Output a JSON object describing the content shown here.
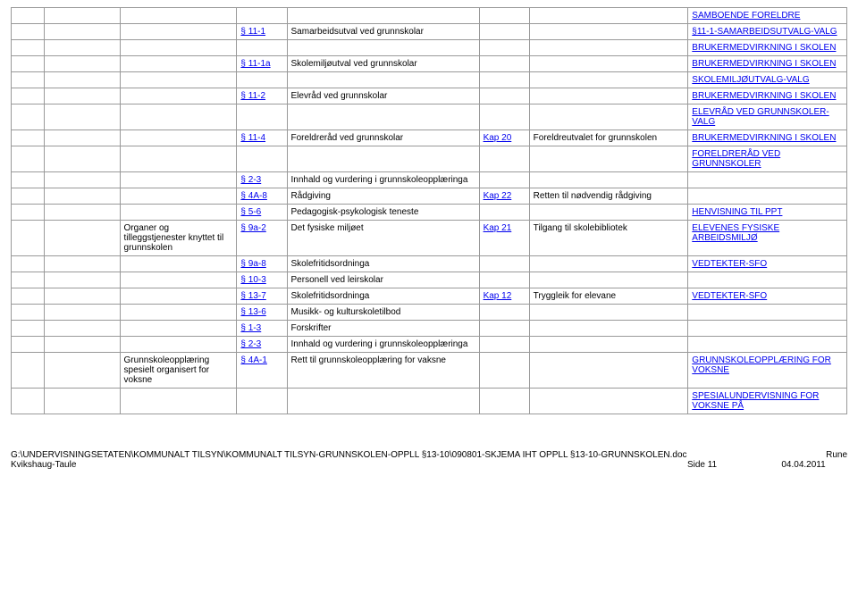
{
  "table": {
    "rows": [
      {
        "c8": {
          "text": "SAMBOENDE FORELDRE",
          "link": true
        }
      },
      {
        "c4": {
          "text": "§ 11-1",
          "link": true
        },
        "c5": {
          "text": "Samarbeidsutval ved grunnskolar"
        },
        "c8": {
          "text": "§11-1-SAMARBEIDSUTVALG-VALG",
          "link": true
        }
      },
      {
        "c8": {
          "text": "BRUKERMEDVIRKNING I SKOLEN",
          "link": true
        }
      },
      {
        "c4": {
          "text": "§ 11-1a",
          "link": true
        },
        "c5": {
          "text": "Skolemiljøutval ved grunnskolar"
        },
        "c8": {
          "text": "BRUKERMEDVIRKNING I SKOLEN",
          "link": true
        }
      },
      {
        "c8": {
          "text": "SKOLEMILJØUTVALG-VALG",
          "link": true
        }
      },
      {
        "c4": {
          "text": "§ 11-2",
          "link": true
        },
        "c5": {
          "text": "Elevråd ved grunnskolar"
        },
        "c8": {
          "text": "BRUKERMEDVIRKNING I SKOLEN",
          "link": true
        }
      },
      {
        "c8": {
          "text": "ELEVRÅD VED GRUNNSKOLER-VALG",
          "link": true
        }
      },
      {
        "c4": {
          "text": "§ 11-4",
          "link": true
        },
        "c5": {
          "text": "Foreldreråd ved grunnskolar"
        },
        "c6": {
          "text": "Kap 20",
          "link": true
        },
        "c7": {
          "text": "Foreldreutvalet for grunnskolen"
        },
        "c8": {
          "text": "BRUKERMEDVIRKNING I SKOLEN",
          "link": true
        }
      },
      {
        "c8": {
          "text": "FORELDRERÅD VED GRUNNSKOLER",
          "link": true
        }
      },
      {
        "c4": {
          "text": "§ 2-3",
          "link": true
        },
        "c5": {
          "text": "Innhald og vurdering i grunnskoleopplæringa"
        }
      },
      {
        "c4": {
          "text": "§ 4A-8",
          "link": true
        },
        "c5": {
          "text": "Rådgiving"
        },
        "c6": {
          "text": "Kap 22",
          "link": true
        },
        "c7": {
          "text": "Retten til nødvendig rådgiving"
        }
      },
      {
        "c4": {
          "text": "§ 5-6",
          "link": true
        },
        "c5": {
          "text": "Pedagogisk-psykologisk teneste"
        },
        "c8": {
          "text": " HENVISNING TIL PPT",
          "link": true
        }
      },
      {
        "c3": {
          "text": "Organer og tilleggstjenester knyttet til grunnskolen"
        },
        "c4": {
          "text": "§ 9a-2",
          "link": true
        },
        "c5": {
          "text": "Det fysiske miljøet"
        },
        "c6": {
          "text": "Kap 21",
          "link": true
        },
        "c7": {
          "text": "Tilgang til skolebibliotek"
        },
        "c8": {
          "text": "ELEVENES FYSISKE ARBEIDSMILJØ",
          "link": true
        }
      },
      {
        "c4": {
          "text": "§ 9a-8",
          "link": true
        },
        "c5": {
          "text": "Skolefritidsordninga"
        },
        "c8": {
          "text": " VEDTEKTER-SFO",
          "link": true
        }
      },
      {
        "c4": {
          "text": "§ 10-3",
          "link": true
        },
        "c5": {
          "text": "Personell ved leirskolar"
        }
      },
      {
        "c4": {
          "text": "§ 13-7",
          "link": true
        },
        "c5": {
          "text": "Skolefritidsordninga"
        },
        "c6": {
          "text": "Kap 12",
          "link": true
        },
        "c7": {
          "text": "Tryggleik for elevane"
        },
        "c8": {
          "text": " VEDTEKTER-SFO",
          "link": true
        }
      },
      {
        "c4": {
          "text": "§ 13-6",
          "link": true
        },
        "c5": {
          "text": "Musikk- og kulturskoletilbod"
        }
      },
      {
        "c4": {
          "text": "§ 1-3",
          "link": true
        },
        "c5": {
          "text": "Forskrifter"
        }
      },
      {
        "c4": {
          "text": "§ 2-3",
          "link": true
        },
        "c5": {
          "text": "Innhald og vurdering i grunnskoleopplæringa"
        }
      },
      {
        "c3": {
          "text": "Grunnskoleopplæring spesielt organisert for voksne"
        },
        "c4": {
          "text": "§ 4A-1",
          "link": true
        },
        "c5": {
          "text": "Rett til grunnskoleopplæring for vaksne"
        },
        "c8": {
          "text": "GRUNNSKOLEOPPLÆRING FOR VOKSNE",
          "link": true
        }
      },
      {
        "c8": {
          "text": "SPESIALUNDERVISNING FOR VOKSNE PÅ",
          "link": true
        }
      }
    ]
  },
  "footer": {
    "path": "G:\\UNDERVISNINGSETATEN\\KOMMUNALT TILSYN\\KOMMUNALT TILSYN-GRUNNSKOLEN-OPPLL §13-10\\090801-SKJEMA IHT OPPLL §13-10-GRUNNSKOLEN.doc",
    "author": "Kvikshaug-Taule",
    "page": "Side 11",
    "date": "04.04.2011",
    "right": "Rune"
  }
}
